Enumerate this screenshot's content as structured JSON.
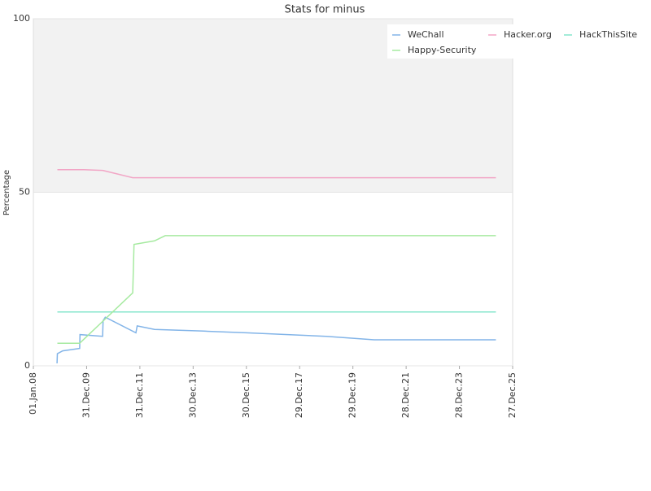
{
  "chart_data": {
    "type": "line",
    "title": "Stats for minus",
    "y_label": "Percentage",
    "xlim": [
      2008,
      2026
    ],
    "ylim": [
      0,
      100
    ],
    "yticks": [
      0,
      50,
      100
    ],
    "xticks": [
      {
        "value": 2008,
        "label": "01.Jan.08"
      },
      {
        "value": 2010,
        "label": "31.Dec.09"
      },
      {
        "value": 2012,
        "label": "31.Dec.11"
      },
      {
        "value": 2014,
        "label": "30.Dec.13"
      },
      {
        "value": 2016,
        "label": "30.Dec.15"
      },
      {
        "value": 2018,
        "label": "29.Dec.17"
      },
      {
        "value": 2020,
        "label": "29.Dec.19"
      },
      {
        "value": 2022,
        "label": "28.Dec.21"
      },
      {
        "value": 2024,
        "label": "28.Dec.23"
      },
      {
        "value": 2026,
        "label": "27.Dec.25"
      }
    ],
    "series": [
      {
        "name": "WeChall",
        "color": "#82b4e8",
        "x": [
          2008.89,
          2008.9,
          2009.1,
          2009.74,
          2009.75,
          2010.6,
          2010.62,
          2010.7,
          2011.85,
          2011.9,
          2012.55,
          2014.4,
          2016,
          2019,
          2020.8,
          2025.37
        ],
        "values": [
          0.7,
          3.5,
          4.3,
          5,
          9,
          8.5,
          13,
          14,
          9.5,
          11.5,
          10.5,
          10,
          9.5,
          8.5,
          7.5,
          7.5
        ]
      },
      {
        "name": "Hacker.org",
        "color": "#f2a6c6",
        "x": [
          2008.9,
          2009.9,
          2010.6,
          2011.73,
          2025.37
        ],
        "values": [
          56.5,
          56.5,
          56.3,
          54.2,
          54.2
        ]
      },
      {
        "name": "HackThisSite",
        "color": "#86e6cc",
        "x": [
          2008.9,
          2025.37
        ],
        "values": [
          15.5,
          15.5
        ]
      },
      {
        "name": "Happy-Security",
        "color": "#a6eaa0",
        "x": [
          2008.9,
          2009.74,
          2011.73,
          2011.78,
          2012.55,
          2012.95,
          2025.37
        ],
        "values": [
          6.5,
          6.5,
          21,
          35,
          36,
          37.5,
          37.5
        ]
      }
    ]
  }
}
